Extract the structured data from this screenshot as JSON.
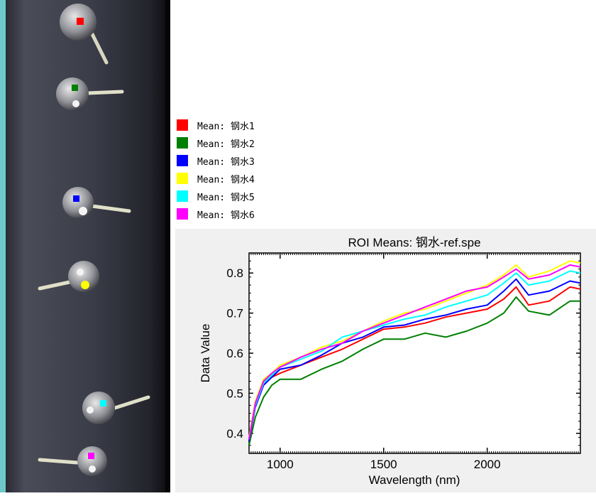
{
  "legend": {
    "items": [
      {
        "label": "Mean: 钢水1",
        "color": "#ff0000"
      },
      {
        "label": "Mean: 钢水2",
        "color": "#008000"
      },
      {
        "label": "Mean: 钢水3",
        "color": "#0000ff"
      },
      {
        "label": "Mean: 钢水4",
        "color": "#ffff00"
      },
      {
        "label": "Mean: 钢水5",
        "color": "#00ffff"
      },
      {
        "label": "Mean: 钢水6",
        "color": "#ff00ff"
      }
    ]
  },
  "image_panel": {
    "roi_marker_colors": [
      "#ff0000",
      "#008000",
      "#0000ff",
      "#ffff00",
      "#00ffff",
      "#ff00ff"
    ]
  },
  "chart_data": {
    "type": "line",
    "title": "ROI Means: 钢水-ref.spe",
    "xlabel": "Wavelength (nm)",
    "ylabel": "Data Value",
    "xlim": [
      850,
      2450
    ],
    "ylim": [
      0.35,
      0.85
    ],
    "xticks": [
      1000,
      1500,
      2000
    ],
    "yticks": [
      0.4,
      0.5,
      0.6,
      0.7,
      0.8
    ],
    "grid": false,
    "series": [
      {
        "name": "Mean: 钢水1",
        "color": "#ff0000",
        "x": [
          850,
          880,
          920,
          960,
          1000,
          1100,
          1200,
          1300,
          1400,
          1500,
          1600,
          1700,
          1800,
          1900,
          2000,
          2080,
          2140,
          2200,
          2300,
          2400,
          2450
        ],
        "y": [
          0.38,
          0.47,
          0.53,
          0.54,
          0.55,
          0.57,
          0.59,
          0.61,
          0.635,
          0.66,
          0.665,
          0.675,
          0.69,
          0.7,
          0.71,
          0.735,
          0.765,
          0.72,
          0.73,
          0.765,
          0.76
        ]
      },
      {
        "name": "Mean: 钢水2",
        "color": "#008000",
        "x": [
          850,
          880,
          920,
          960,
          1000,
          1100,
          1200,
          1300,
          1400,
          1500,
          1600,
          1700,
          1800,
          1900,
          2000,
          2080,
          2140,
          2200,
          2300,
          2400,
          2450
        ],
        "y": [
          0.37,
          0.44,
          0.49,
          0.52,
          0.535,
          0.535,
          0.56,
          0.58,
          0.61,
          0.635,
          0.635,
          0.65,
          0.64,
          0.655,
          0.675,
          0.7,
          0.74,
          0.705,
          0.695,
          0.73,
          0.73
        ]
      },
      {
        "name": "Mean: 钢水3",
        "color": "#0000ff",
        "x": [
          850,
          880,
          920,
          960,
          1000,
          1100,
          1200,
          1300,
          1400,
          1500,
          1600,
          1700,
          1800,
          1900,
          2000,
          2080,
          2140,
          2200,
          2300,
          2400,
          2450
        ],
        "y": [
          0.38,
          0.465,
          0.52,
          0.54,
          0.56,
          0.57,
          0.595,
          0.625,
          0.64,
          0.665,
          0.67,
          0.685,
          0.695,
          0.71,
          0.72,
          0.755,
          0.785,
          0.745,
          0.755,
          0.78,
          0.775
        ]
      },
      {
        "name": "Mean: 钢水4",
        "color": "#ffff00",
        "x": [
          850,
          880,
          920,
          960,
          1000,
          1100,
          1200,
          1300,
          1400,
          1500,
          1600,
          1700,
          1800,
          1900,
          2000,
          2080,
          2140,
          2200,
          2300,
          2400,
          2450
        ],
        "y": [
          0.39,
          0.48,
          0.535,
          0.55,
          0.57,
          0.59,
          0.615,
          0.63,
          0.655,
          0.68,
          0.7,
          0.71,
          0.73,
          0.75,
          0.77,
          0.795,
          0.82,
          0.79,
          0.805,
          0.83,
          0.825
        ]
      },
      {
        "name": "Mean: 钢水5",
        "color": "#00ffff",
        "x": [
          850,
          880,
          920,
          960,
          1000,
          1100,
          1200,
          1300,
          1400,
          1500,
          1600,
          1700,
          1800,
          1900,
          2000,
          2080,
          2140,
          2200,
          2300,
          2400,
          2450
        ],
        "y": [
          0.385,
          0.47,
          0.525,
          0.545,
          0.565,
          0.585,
          0.605,
          0.64,
          0.655,
          0.67,
          0.685,
          0.695,
          0.715,
          0.73,
          0.745,
          0.775,
          0.8,
          0.77,
          0.78,
          0.805,
          0.8
        ]
      },
      {
        "name": "Mean: 钢水6",
        "color": "#ff00ff",
        "x": [
          850,
          880,
          920,
          960,
          1000,
          1100,
          1200,
          1300,
          1400,
          1500,
          1600,
          1700,
          1800,
          1900,
          2000,
          2080,
          2140,
          2200,
          2300,
          2400,
          2450
        ],
        "y": [
          0.385,
          0.475,
          0.53,
          0.55,
          0.565,
          0.59,
          0.61,
          0.625,
          0.655,
          0.675,
          0.695,
          0.715,
          0.735,
          0.755,
          0.765,
          0.79,
          0.81,
          0.785,
          0.795,
          0.82,
          0.815
        ]
      }
    ]
  }
}
